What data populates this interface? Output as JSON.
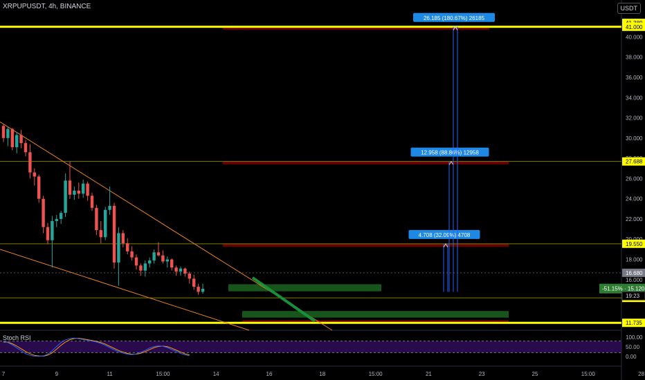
{
  "header": {
    "symbol_line": "XRPUPUSDT, 4h, BINANCE",
    "currency": "USDT"
  },
  "oscillator": {
    "name": "Stoch RSI",
    "levels": [
      100,
      50,
      0
    ],
    "k": [
      80,
      72,
      60,
      45,
      30,
      15,
      6,
      2,
      1,
      3,
      12,
      30,
      52,
      72,
      86,
      93,
      95,
      92,
      88,
      84,
      80,
      75,
      68,
      58,
      46,
      34,
      25,
      18,
      12,
      10,
      14,
      22,
      32,
      44,
      52,
      55,
      53,
      46,
      36,
      26,
      16,
      9,
      4
    ],
    "d": [
      75,
      74,
      66,
      54,
      40,
      26,
      14,
      6,
      3,
      2,
      7,
      19,
      38,
      58,
      75,
      87,
      93,
      94,
      91,
      87,
      83,
      78,
      72,
      64,
      53,
      42,
      31,
      23,
      16,
      12,
      12,
      17,
      25,
      36,
      46,
      52,
      54,
      51,
      43,
      33,
      23,
      14,
      8
    ],
    "tick_labels": [
      "100.00",
      "50.00",
      "0.00"
    ]
  },
  "chart_data": {
    "type": "candlestick",
    "title": "XRPUPUSDT, 4h, BINANCE",
    "ylim": [
      11.0,
      41.6
    ],
    "price_ticks": [
      "40.000",
      "38.000",
      "36.000",
      "34.000",
      "32.000",
      "30.000",
      "28.000",
      "26.000",
      "24.000",
      "22.000",
      "20.000",
      "18.000",
      "16.000"
    ],
    "price_tick_values": [
      40,
      38,
      36,
      34,
      32,
      30,
      28,
      26,
      24,
      22,
      20,
      18,
      16
    ],
    "x_ticks": [
      "7",
      "9",
      "11",
      "15:00",
      "14",
      "16",
      "18",
      "15:00",
      "21",
      "23",
      "25",
      "15:00",
      "28"
    ],
    "x_tick_bars": [
      0,
      12,
      24,
      36,
      48,
      60,
      72,
      84,
      96,
      108,
      120,
      132,
      144
    ],
    "candles": [
      [
        31.2,
        31.4,
        29.6,
        30.0
      ],
      [
        30.0,
        31.1,
        29.2,
        30.9
      ],
      [
        30.9,
        31.0,
        28.8,
        29.1
      ],
      [
        29.1,
        30.6,
        28.5,
        30.3
      ],
      [
        30.3,
        30.8,
        29.0,
        29.5
      ],
      [
        29.5,
        29.8,
        28.2,
        28.6
      ],
      [
        28.6,
        29.4,
        26.0,
        26.6
      ],
      [
        26.6,
        27.0,
        25.3,
        26.2
      ],
      [
        26.2,
        26.4,
        23.6,
        24.0
      ],
      [
        24.0,
        24.3,
        20.6,
        21.2
      ],
      [
        21.2,
        21.6,
        19.5,
        19.9
      ],
      [
        19.9,
        22.3,
        17.2,
        21.8
      ],
      [
        21.8,
        22.4,
        21.2,
        22.0
      ],
      [
        22.0,
        22.8,
        21.5,
        22.6
      ],
      [
        22.6,
        26.5,
        22.2,
        25.8
      ],
      [
        25.8,
        27.7,
        24.0,
        24.4
      ],
      [
        24.4,
        25.2,
        23.9,
        24.8
      ],
      [
        24.8,
        25.6,
        24.0,
        24.5
      ],
      [
        24.5,
        25.9,
        24.1,
        25.5
      ],
      [
        25.5,
        25.7,
        23.8,
        24.3
      ],
      [
        24.3,
        24.6,
        22.8,
        23.1
      ],
      [
        23.1,
        23.4,
        20.4,
        20.9
      ],
      [
        20.9,
        21.8,
        19.6,
        20.2
      ],
      [
        20.2,
        23.2,
        19.9,
        22.9
      ],
      [
        22.9,
        25.2,
        22.4,
        23.3
      ],
      [
        23.3,
        23.6,
        17.1,
        17.7
      ],
      [
        17.7,
        21.2,
        15.4,
        20.6
      ],
      [
        20.6,
        20.9,
        19.2,
        19.6
      ],
      [
        19.6,
        20.1,
        18.5,
        18.8
      ],
      [
        18.8,
        19.3,
        17.9,
        18.2
      ],
      [
        18.2,
        18.5,
        17.0,
        17.4
      ],
      [
        17.4,
        17.6,
        16.4,
        16.9
      ],
      [
        16.9,
        17.9,
        16.3,
        17.6
      ],
      [
        17.6,
        18.2,
        17.2,
        17.9
      ],
      [
        17.9,
        19.0,
        17.6,
        18.7
      ],
      [
        18.7,
        19.7,
        18.3,
        18.4
      ],
      [
        18.4,
        18.9,
        17.6,
        17.8
      ],
      [
        17.8,
        18.3,
        17.2,
        18.0
      ],
      [
        18.0,
        18.1,
        16.9,
        17.2
      ],
      [
        17.2,
        17.4,
        16.4,
        16.8
      ],
      [
        16.8,
        17.3,
        16.4,
        17.1
      ],
      [
        17.1,
        17.2,
        16.3,
        16.6
      ],
      [
        16.6,
        16.8,
        15.6,
        16.1
      ],
      [
        16.1,
        16.5,
        15.0,
        15.3
      ],
      [
        15.3,
        15.6,
        14.5,
        14.8
      ],
      [
        14.8,
        15.6,
        14.6,
        15.1
      ]
    ],
    "horizontal_levels": [
      {
        "value": 41.0,
        "color": "#ffff00",
        "label": "41.000",
        "thick": true
      },
      {
        "value": 11.735,
        "color": "#ffff00",
        "label": "11.735",
        "thick": true
      },
      {
        "value": 27.688,
        "color": "#808000",
        "label": "27.688"
      },
      {
        "value": 19.55,
        "color": "#808000",
        "label": "19.550"
      },
      {
        "value": 14.2,
        "color": "#808000",
        "label": "14.200"
      }
    ],
    "price_labels": [
      {
        "value": 41.389,
        "text": "41.389",
        "bg": "#ffff00",
        "fg": "#000"
      },
      {
        "value": 41.0,
        "text": "41.000",
        "bg": "#ffff00",
        "fg": "#000"
      },
      {
        "value": 27.688,
        "text": "27.688",
        "bg": "#ffff00",
        "fg": "#000"
      },
      {
        "value": 19.55,
        "text": "19.550",
        "bg": "#ffff00",
        "fg": "#000"
      },
      {
        "value": 16.68,
        "text": "16.680",
        "bg": "#787b86",
        "fg": "#fff"
      },
      {
        "value": 15.12,
        "text": "15.120",
        "bg": "#2e7d32",
        "fg": "#fff"
      },
      {
        "value": 14.2,
        "text": "14.200",
        "bg": "#ffff00",
        "fg": "#000"
      },
      {
        "value": 11.735,
        "text": "11.735",
        "bg": "#ffff00",
        "fg": "#000"
      }
    ],
    "current_price_tag": {
      "value": 15.12,
      "text": "-51.15% · 15.120"
    },
    "timer_tag": {
      "value": 14.4,
      "text": "19:23"
    },
    "measurements": [
      {
        "from": 14.8,
        "to": 19.55,
        "text": "4.708 (32.09%) 4708"
      },
      {
        "from": 14.8,
        "to": 27.688,
        "text": "12.958 (88.86%) 12958"
      },
      {
        "from": 14.8,
        "to": 41.0,
        "text": "26.185 (180.67%) 26185"
      }
    ],
    "target_zones": [
      {
        "top": 41.0,
        "bottom": 40.7,
        "color": "#8b0000"
      },
      {
        "top": 27.7,
        "bottom": 27.4,
        "color": "#8b0000"
      },
      {
        "top": 19.55,
        "bottom": 19.25,
        "color": "#8b0000"
      }
    ]
  }
}
